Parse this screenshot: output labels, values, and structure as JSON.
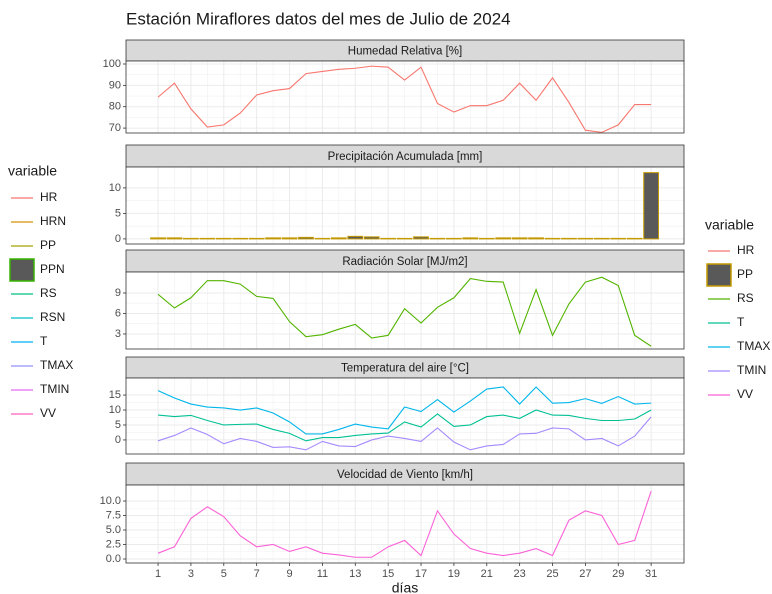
{
  "title": "Estación Miraflores datos del mes de Julio de 2024",
  "legends": [
    {
      "title": "variable",
      "items": [
        {
          "name": "HR",
          "color": "#F8766D",
          "key": "line"
        },
        {
          "name": "HRN",
          "color": "#D89000",
          "key": "line"
        },
        {
          "name": "PP",
          "color": "#A3A500",
          "key": "line"
        },
        {
          "name": "PPN",
          "color": "#39B600",
          "key": "box"
        },
        {
          "name": "RS",
          "color": "#00BF7D",
          "key": "line"
        },
        {
          "name": "RSN",
          "color": "#00BFC4",
          "key": "line"
        },
        {
          "name": "T",
          "color": "#00B0F6",
          "key": "line"
        },
        {
          "name": "TMAX",
          "color": "#9590FF",
          "key": "line"
        },
        {
          "name": "TMIN",
          "color": "#E76BF3",
          "key": "line"
        },
        {
          "name": "VV",
          "color": "#FF62BC",
          "key": "line"
        }
      ]
    },
    {
      "title": "variable",
      "items": [
        {
          "name": "HR",
          "color": "#F8766D",
          "key": "line"
        },
        {
          "name": "PP",
          "color": "#C49A00",
          "key": "box"
        },
        {
          "name": "RS",
          "color": "#53B400",
          "key": "line"
        },
        {
          "name": "T",
          "color": "#00C094",
          "key": "line"
        },
        {
          "name": "TMAX",
          "color": "#00B6EB",
          "key": "line"
        },
        {
          "name": "TMIN",
          "color": "#A58AFF",
          "key": "line"
        },
        {
          "name": "VV",
          "color": "#FB61D7",
          "key": "line"
        }
      ]
    }
  ],
  "chart_data": [
    {
      "type": "line",
      "title": "Humedad Relativa [%]",
      "grid": true,
      "x": [
        1,
        2,
        3,
        4,
        5,
        6,
        7,
        8,
        9,
        10,
        11,
        12,
        13,
        14,
        15,
        16,
        17,
        18,
        19,
        20,
        21,
        22,
        23,
        24,
        25,
        26,
        27,
        28,
        29,
        30,
        31
      ],
      "xlim": [
        -0.95,
        33
      ],
      "xticks": [
        1,
        3,
        5,
        7,
        9,
        11,
        13,
        15,
        17,
        19,
        21,
        23,
        25,
        27,
        29,
        31
      ],
      "ylim": [
        67.7,
        101.4
      ],
      "yticks": [
        70,
        80,
        90,
        100
      ],
      "series": [
        {
          "name": "HR",
          "color": "#F8766D",
          "values": [
            84.5,
            91,
            79,
            70.5,
            71.5,
            77,
            85.5,
            87.5,
            88.5,
            95.5,
            96.5,
            97.5,
            98,
            99,
            98.5,
            92.5,
            98.5,
            81.5,
            77.5,
            80.5,
            80.5,
            83,
            91,
            83,
            93.5,
            82,
            69,
            68,
            71.5,
            81,
            81
          ]
        }
      ]
    },
    {
      "type": "bar",
      "title": "Precipitación Acumulada [mm]",
      "grid": true,
      "x": [
        1,
        2,
        3,
        4,
        5,
        6,
        7,
        8,
        9,
        10,
        11,
        12,
        13,
        14,
        15,
        16,
        17,
        18,
        19,
        20,
        21,
        22,
        23,
        24,
        25,
        26,
        27,
        28,
        29,
        30,
        31
      ],
      "xlim": [
        -0.95,
        33
      ],
      "xticks": [
        1,
        3,
        5,
        7,
        9,
        11,
        13,
        15,
        17,
        19,
        21,
        23,
        25,
        27,
        29,
        31
      ],
      "ylim": [
        -1,
        14.1
      ],
      "yticks": [
        0,
        5,
        10
      ],
      "series": [
        {
          "name": "PP",
          "color": "#C49A00",
          "fill": "#595959",
          "values": [
            0.2,
            0.2,
            0.1,
            0.1,
            0.1,
            0.1,
            0.1,
            0.2,
            0.2,
            0.3,
            0.1,
            0.2,
            0.5,
            0.4,
            0.1,
            0.1,
            0.4,
            0.1,
            0.1,
            0.2,
            0.1,
            0.2,
            0.2,
            0.2,
            0.1,
            0.1,
            0.1,
            0.1,
            0.1,
            0.1,
            13
          ]
        }
      ]
    },
    {
      "type": "line",
      "title": "Radiación Solar [MJ/m2]",
      "grid": true,
      "x": [
        1,
        2,
        3,
        4,
        5,
        6,
        7,
        8,
        9,
        10,
        11,
        12,
        13,
        14,
        15,
        16,
        17,
        18,
        19,
        20,
        21,
        22,
        23,
        24,
        25,
        26,
        27,
        28,
        29,
        30,
        31
      ],
      "xlim": [
        -0.95,
        33
      ],
      "xticks": [
        1,
        3,
        5,
        7,
        9,
        11,
        13,
        15,
        17,
        19,
        21,
        23,
        25,
        27,
        29,
        31
      ],
      "ylim": [
        0.8,
        12.07
      ],
      "yticks": [
        3,
        6,
        9
      ],
      "series": [
        {
          "name": "RS",
          "color": "#53B400",
          "values": [
            8.8,
            6.8,
            8.3,
            10.8,
            10.8,
            10.3,
            8.5,
            8.2,
            4.8,
            2.6,
            2.9,
            3.7,
            4.4,
            2.4,
            2.8,
            6.7,
            4.6,
            6.9,
            8.3,
            11.1,
            10.7,
            10.6,
            3.1,
            9.5,
            2.8,
            7.4,
            10.6,
            11.3,
            10.1,
            2.8,
            1.2
          ]
        }
      ]
    },
    {
      "type": "line",
      "title": "Temperatura del aire [°C]",
      "grid": true,
      "x": [
        1,
        2,
        3,
        4,
        5,
        6,
        7,
        8,
        9,
        10,
        11,
        12,
        13,
        14,
        15,
        16,
        17,
        18,
        19,
        20,
        21,
        22,
        23,
        24,
        25,
        26,
        27,
        28,
        29,
        30,
        31
      ],
      "xlim": [
        -0.95,
        33
      ],
      "xticks": [
        1,
        3,
        5,
        7,
        9,
        11,
        13,
        15,
        17,
        19,
        21,
        23,
        25,
        27,
        29,
        31
      ],
      "ylim": [
        -4.7,
        20.7
      ],
      "yticks": [
        0,
        5,
        10,
        15
      ],
      "series": [
        {
          "name": "T",
          "color": "#00C094",
          "values": [
            8.3,
            7.8,
            8.2,
            6.5,
            5,
            5.2,
            5.3,
            3.5,
            2.2,
            -0.3,
            0.8,
            0.8,
            1.5,
            2,
            2.3,
            6,
            4.3,
            8.7,
            4.5,
            5,
            7.8,
            8.3,
            7.2,
            10,
            8.3,
            8.2,
            7.2,
            6.5,
            6.5,
            7,
            10
          ]
        },
        {
          "name": "TMAX",
          "color": "#00B6EB",
          "values": [
            16.5,
            14,
            12,
            11,
            10.7,
            10,
            10.7,
            9,
            6,
            2,
            2,
            3.5,
            5.3,
            4.3,
            3.7,
            11,
            9.5,
            13.5,
            9.3,
            13,
            17,
            17.7,
            12,
            17.7,
            12.3,
            12.5,
            13.8,
            12.2,
            14.5,
            12,
            12.3
          ]
        },
        {
          "name": "TMIN",
          "color": "#A58AFF",
          "values": [
            -0.3,
            1.5,
            4,
            1.8,
            -1.3,
            0.5,
            -0.5,
            -2.5,
            -2.3,
            -3.3,
            -0.5,
            -2,
            -2.2,
            0,
            1.3,
            0.5,
            -0.5,
            4,
            -0.7,
            -3.3,
            -2,
            -1.5,
            2,
            2.2,
            4,
            3.7,
            0,
            0.5,
            -2,
            1.3,
            7.7
          ]
        }
      ]
    },
    {
      "type": "line",
      "title": "Velocidad de Viento [km/h]",
      "grid": true,
      "xlabel": "días",
      "x": [
        1,
        2,
        3,
        4,
        5,
        6,
        7,
        8,
        9,
        10,
        11,
        12,
        13,
        14,
        15,
        16,
        17,
        18,
        19,
        20,
        21,
        22,
        23,
        24,
        25,
        26,
        27,
        28,
        29,
        30,
        31
      ],
      "xlim": [
        -0.95,
        33
      ],
      "xticks": [
        1,
        3,
        5,
        7,
        9,
        11,
        13,
        15,
        17,
        19,
        21,
        23,
        25,
        27,
        29,
        31
      ],
      "ylim": [
        -0.69,
        12.76
      ],
      "yticks": [
        {
          "value": 0,
          "label": "0.0"
        },
        {
          "value": 2.5,
          "label": "2.5"
        },
        {
          "value": 5,
          "label": "5.0"
        },
        {
          "value": 7.5,
          "label": "7.5"
        },
        {
          "value": 10,
          "label": "10.0"
        }
      ],
      "series": [
        {
          "name": "VV",
          "color": "#FB61D7",
          "values": [
            1,
            2.1,
            7,
            9,
            7.3,
            4,
            2.1,
            2.5,
            1.3,
            2.1,
            1,
            0.7,
            0.3,
            0.3,
            2.1,
            3.2,
            0.6,
            8.3,
            4.3,
            1.8,
            1,
            0.6,
            1,
            1.8,
            0.6,
            6.7,
            8.3,
            7.5,
            2.5,
            3.2,
            11.7
          ]
        }
      ]
    }
  ]
}
